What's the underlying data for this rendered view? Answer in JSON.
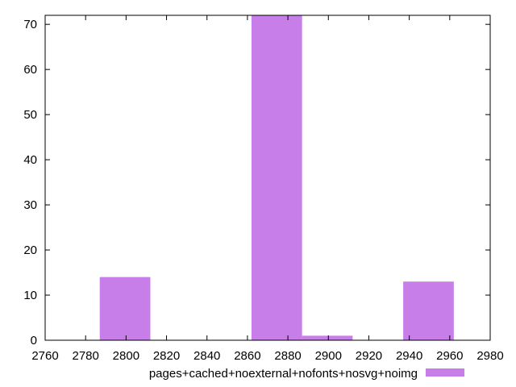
{
  "chart_data": {
    "type": "bar",
    "subtype": "histogram",
    "title": "",
    "xlabel": "",
    "ylabel": "",
    "xlim": [
      2760,
      2980
    ],
    "ylim": [
      0,
      72
    ],
    "x_ticks": [
      2760,
      2780,
      2800,
      2820,
      2840,
      2860,
      2880,
      2900,
      2920,
      2940,
      2960,
      2980
    ],
    "y_ticks": [
      0,
      10,
      20,
      30,
      40,
      50,
      60,
      70
    ],
    "grid": false,
    "legend_position": "bottom-center",
    "series": [
      {
        "name": "pages+cached+noexternal+nofonts+nosvg+noimg",
        "color": "#c77ee8",
        "bins": [
          {
            "x_start": 2787,
            "x_end": 2812,
            "value": 14
          },
          {
            "x_start": 2862,
            "x_end": 2887,
            "value": 72
          },
          {
            "x_start": 2887,
            "x_end": 2912,
            "value": 1
          },
          {
            "x_start": 2937,
            "x_end": 2962,
            "value": 13
          }
        ]
      }
    ]
  }
}
